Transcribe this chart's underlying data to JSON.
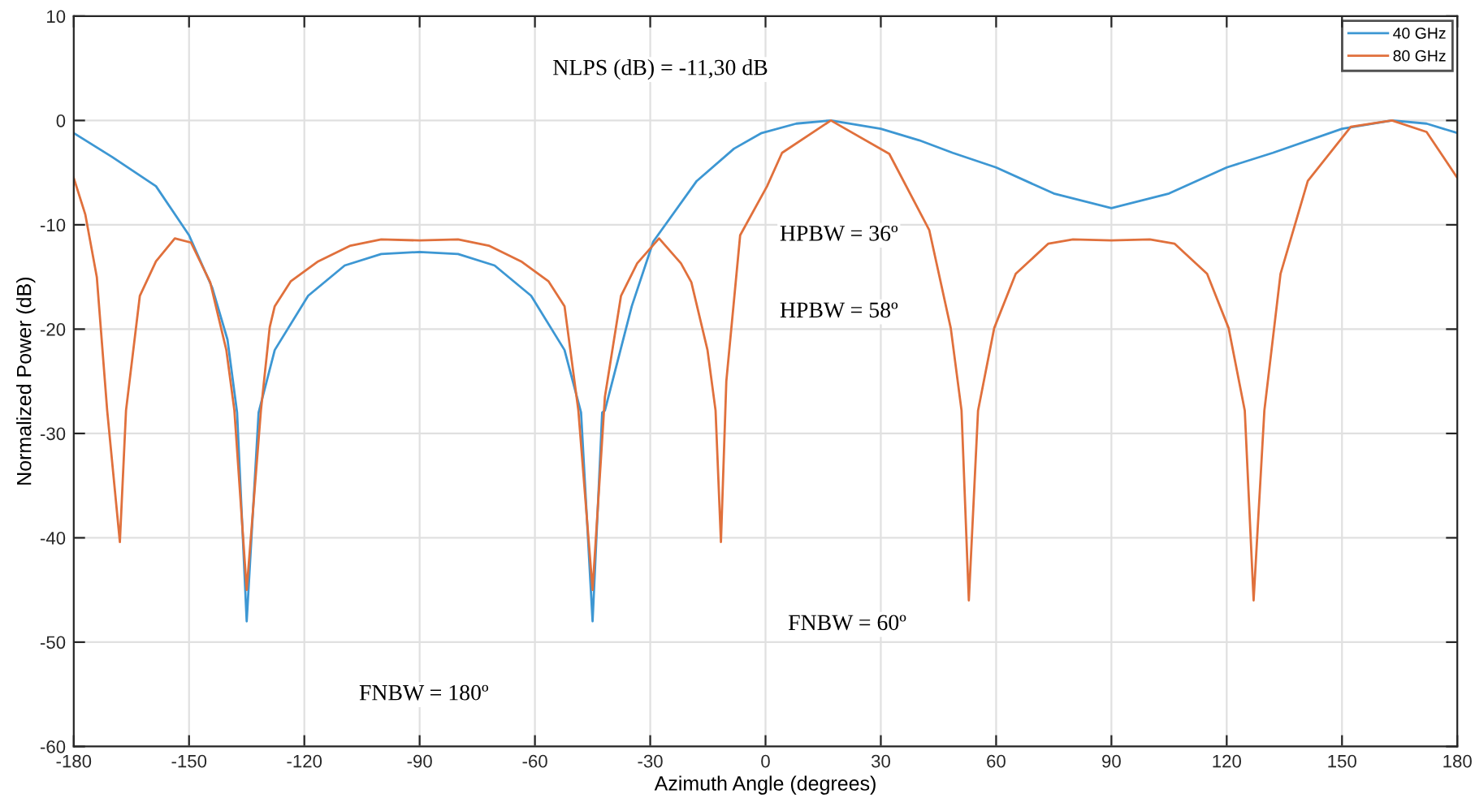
{
  "chart_data": {
    "type": "line",
    "xlabel": "Azimuth Angle (degrees)",
    "ylabel": "Normalized Power (dB)",
    "xlim": [
      -180,
      180
    ],
    "xticks": [
      -180,
      -150,
      -120,
      -90,
      -60,
      -30,
      0,
      30,
      60,
      90,
      120,
      150,
      180
    ],
    "ylim": [
      -60,
      10
    ],
    "yticks": [
      -60,
      -50,
      -40,
      -30,
      -20,
      -10,
      0,
      10
    ],
    "grid": true,
    "legend": "top right",
    "marker": "none",
    "line_style": "solid",
    "series": [
      {
        "name": "40 GHz",
        "color": "#3d97d3",
        "x": [
          -180,
          -170,
          -158.6,
          -150,
          -144,
          -140,
          -137.5,
          -135,
          -131.9,
          -127.7,
          -119,
          -109.5,
          -100,
          -90,
          -80,
          -70.5,
          -61,
          -52.3,
          -48,
          -45,
          -42.5,
          -41.8,
          -34.8,
          -29.2,
          -17.9,
          -8.2,
          -1,
          8,
          17,
          30,
          40,
          48.7,
          60,
          75,
          90,
          105,
          120,
          132,
          150,
          163,
          172,
          180
        ],
        "values": [
          -1.2,
          -3.5,
          -6.3,
          -11,
          -16,
          -21,
          -28,
          -48,
          -28,
          -22,
          -16.8,
          -13.9,
          -12.8,
          -12.6,
          -12.8,
          -13.9,
          -16.8,
          -22,
          -28,
          -48,
          -28,
          -27.8,
          -17.8,
          -11.6,
          -5.8,
          -2.7,
          -1.2,
          -0.3,
          0,
          -0.8,
          -1.9,
          -3.1,
          -4.5,
          -7,
          -8.4,
          -7,
          -4.5,
          -3.1,
          -0.8,
          0,
          -0.3,
          -1.2
        ]
      },
      {
        "name": "80 GHz",
        "color": "#e0703c",
        "x": [
          -180,
          -177,
          -174,
          -171.3,
          -168,
          -166.4,
          -162.8,
          -158.6,
          -153.7,
          -149.5,
          -144.5,
          -140.3,
          -138.2,
          -135,
          -131.3,
          -129,
          -127.7,
          -123.5,
          -116.4,
          -108,
          -100,
          -90,
          -80,
          -72,
          -63.6,
          -56.5,
          -52.3,
          -48.7,
          -45,
          -41.8,
          -37.6,
          -33.4,
          -27.7,
          -22,
          -19.3,
          -15.1,
          -13,
          -11.6,
          -10.2,
          -6.6,
          0.4,
          4.3,
          17,
          32.2,
          42.6,
          48.2,
          51,
          52.9,
          55.3,
          59.5,
          65.1,
          73.6,
          80,
          90,
          100,
          106.4,
          114.9,
          120.5,
          124.7,
          127,
          129.8,
          134,
          141.1,
          152.3,
          163,
          172,
          180
        ],
        "values": [
          -5.5,
          -9,
          -15,
          -27.8,
          -40.4,
          -27.8,
          -16.8,
          -13.5,
          -11.3,
          -11.7,
          -15.5,
          -22,
          -27.8,
          -45,
          -27.8,
          -19.8,
          -17.8,
          -15.4,
          -13.5,
          -12,
          -11.4,
          -11.5,
          -11.4,
          -12,
          -13.5,
          -15.4,
          -17.8,
          -27.8,
          -45,
          -26.5,
          -16.8,
          -13.7,
          -11.3,
          -13.7,
          -15.5,
          -22,
          -27.8,
          -40.4,
          -25,
          -11,
          -6.3,
          -3.1,
          0,
          -3.2,
          -10.5,
          -19.9,
          -27.8,
          -46,
          -27.8,
          -19.9,
          -14.7,
          -11.8,
          -11.4,
          -11.5,
          -11.4,
          -11.8,
          -14.7,
          -19.9,
          -27.8,
          -46,
          -27.8,
          -14.7,
          -5.8,
          -0.6,
          0,
          -1.1,
          -5.5
        ]
      }
    ],
    "annotations": [
      "NLPS (dB) = -11,30 dB",
      "HPBW = 36º",
      "HPBW = 58º",
      "FNBW = 60º",
      "FNBW = 180º"
    ]
  }
}
